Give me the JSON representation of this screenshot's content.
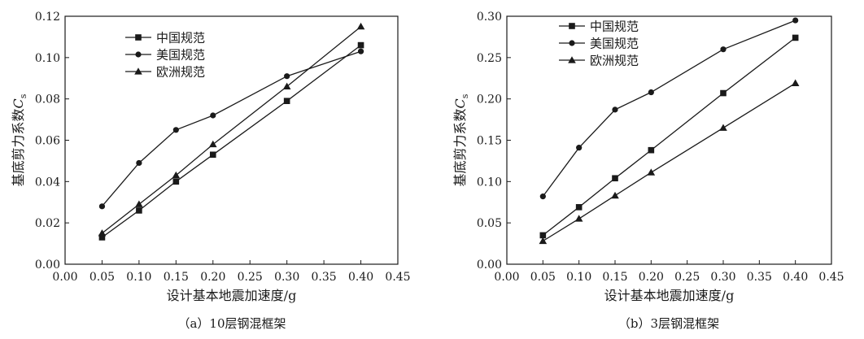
{
  "chart_data": [
    {
      "type": "line",
      "caption": "（a）10层钢混框架",
      "xlabel": "设计基本地震加速度/g",
      "ylabel": "基底剪力系数",
      "ylabel_symbol": "C",
      "ylabel_subscript": "s",
      "xlim": [
        0.0,
        0.45
      ],
      "ylim": [
        0.0,
        0.12
      ],
      "x_ticks": [
        "0.00",
        "0.05",
        "0.10",
        "0.15",
        "0.20",
        "0.25",
        "0.30",
        "0.35",
        "0.40",
        "0.45"
      ],
      "y_ticks": [
        "0.00",
        "0.02",
        "0.04",
        "0.06",
        "0.08",
        "0.10",
        "0.12"
      ],
      "grid": false,
      "legend_position": "top-left",
      "x": [
        0.05,
        0.1,
        0.15,
        0.2,
        0.3,
        0.4
      ],
      "series": [
        {
          "name": "中国规范",
          "marker": "square",
          "values": [
            0.013,
            0.026,
            0.04,
            0.053,
            0.079,
            0.106
          ]
        },
        {
          "name": "美国规范",
          "marker": "circle",
          "values": [
            0.028,
            0.049,
            0.065,
            0.072,
            0.091,
            0.103
          ]
        },
        {
          "name": "欧洲规范",
          "marker": "triangle",
          "values": [
            0.015,
            0.029,
            0.043,
            0.058,
            0.086,
            0.115
          ]
        }
      ]
    },
    {
      "type": "line",
      "caption": "（b）3层钢混框架",
      "xlabel": "设计基本地震加速度/g",
      "ylabel": "基底剪力系数",
      "ylabel_symbol": "C",
      "ylabel_subscript": "s",
      "xlim": [
        0.0,
        0.45
      ],
      "ylim": [
        0.0,
        0.3
      ],
      "x_ticks": [
        "0.00",
        "0.05",
        "0.10",
        "0.15",
        "0.20",
        "0.25",
        "0.30",
        "0.35",
        "0.40",
        "0.45"
      ],
      "y_ticks": [
        "0.00",
        "0.05",
        "0.10",
        "0.15",
        "0.20",
        "0.25",
        "0.30"
      ],
      "grid": false,
      "legend_position": "top-left",
      "x": [
        0.05,
        0.1,
        0.15,
        0.2,
        0.3,
        0.4
      ],
      "series": [
        {
          "name": "中国规范",
          "marker": "square",
          "values": [
            0.035,
            0.069,
            0.104,
            0.138,
            0.207,
            0.274
          ]
        },
        {
          "name": "美国规范",
          "marker": "circle",
          "values": [
            0.082,
            0.141,
            0.187,
            0.208,
            0.26,
            0.295
          ]
        },
        {
          "name": "欧洲规范",
          "marker": "triangle",
          "values": [
            0.028,
            0.055,
            0.083,
            0.111,
            0.165,
            0.219
          ]
        }
      ]
    }
  ]
}
